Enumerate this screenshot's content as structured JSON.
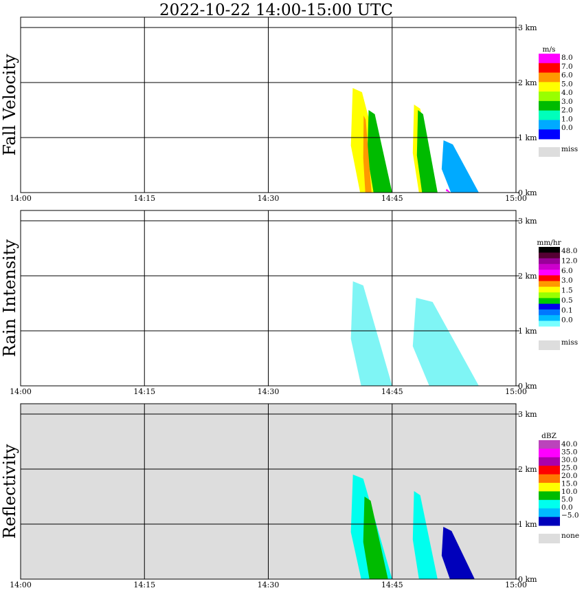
{
  "title": "2022-10-22   14:00-15:00 UTC",
  "colors": {
    "axis": "#000000",
    "missing_fill": "#dddddd",
    "rain_echo": "#7ff5f5"
  },
  "chart_data": [
    {
      "type": "heatmap",
      "panel_label": "Fall Velocity",
      "x_ticks": [
        "14:00",
        "14:15",
        "14:30",
        "14:45",
        "15:00"
      ],
      "y_ticks": [
        "0 km",
        "1 km",
        "2 km",
        "3 km"
      ],
      "xlim": [
        "14:00",
        "15:00"
      ],
      "ylim_km": [
        0,
        3.0
      ],
      "grid": true,
      "background": "#ffffff",
      "colorbar": {
        "unit": "m/s",
        "labels": [
          "8.0",
          "7.0",
          "6.0",
          "5.0",
          "4.0",
          "3.0",
          "2.0",
          "1.0",
          "0.0"
        ],
        "colors": [
          "#ff00ff",
          "#ff0000",
          "#ff9900",
          "#ffff00",
          "#99ff00",
          "#00bb00",
          "#00ffbb",
          "#00aaff",
          "#0000ff"
        ],
        "missing_label": "miss"
      },
      "echoes": [
        {
          "start_min": 40.0,
          "end_min": 44.5,
          "top_km": 1.9,
          "color": "#ffff00"
        },
        {
          "start_min": 42.0,
          "end_min": 45.0,
          "top_km": 1.5,
          "color": "#00bb00"
        },
        {
          "start_min": 41.5,
          "end_min": 42.5,
          "top_km": 1.4,
          "color": "#ff9900"
        },
        {
          "start_min": 47.5,
          "end_min": 50.5,
          "top_km": 1.6,
          "color": "#ffff00"
        },
        {
          "start_min": 48.0,
          "end_min": 50.5,
          "top_km": 1.5,
          "color": "#00bb00"
        },
        {
          "start_min": 51.0,
          "end_min": 55.5,
          "top_km": 0.95,
          "color": "#00aaff"
        },
        {
          "start_min": 51.5,
          "end_min": 53.5,
          "top_km": 0.07,
          "color": "#ff00ff"
        }
      ]
    },
    {
      "type": "heatmap",
      "panel_label": "Rain Intensity",
      "x_ticks": [
        "14:00",
        "14:15",
        "14:30",
        "14:45",
        "15:00"
      ],
      "y_ticks": [
        "0 km",
        "1 km",
        "2 km",
        "3 km"
      ],
      "xlim": [
        "14:00",
        "15:00"
      ],
      "ylim_km": [
        0,
        3.0
      ],
      "grid": true,
      "background": "#ffffff",
      "colorbar": {
        "unit": "mm/hr",
        "labels": [
          "48.0",
          "12.0",
          "6.0",
          "3.0",
          "1.5",
          "0.5",
          "0.1",
          "0.0"
        ],
        "colors": [
          "#000000",
          "#550033",
          "#990099",
          "#cc00cc",
          "#ff00ff",
          "#ff0000",
          "#ff9900",
          "#ffff00",
          "#99ff00",
          "#00cc00",
          "#0000ee",
          "#0077ff",
          "#00bbff",
          "#77ffff",
          "#ffffff"
        ],
        "missing_label": "miss"
      },
      "echoes": [
        {
          "start_min": 40.0,
          "end_min": 45.0,
          "top_km": 1.9,
          "color": "#7ff5f5"
        },
        {
          "start_min": 47.5,
          "end_min": 55.5,
          "top_km": 1.6,
          "color": "#7ff5f5"
        }
      ]
    },
    {
      "type": "heatmap",
      "panel_label": "Reflectivity",
      "x_ticks": [
        "14:00",
        "14:15",
        "14:30",
        "14:45",
        "15:00"
      ],
      "y_ticks": [
        "0 km",
        "1 km",
        "2 km",
        "3 km"
      ],
      "xlim": [
        "14:00",
        "15:00"
      ],
      "ylim_km": [
        0,
        3.0
      ],
      "grid": true,
      "background": "#dddddd",
      "colorbar": {
        "unit": "dBZ",
        "labels": [
          "40.0",
          "35.0",
          "30.0",
          "25.0",
          "20.0",
          "15.0",
          "10.0",
          "5.0",
          "0.0",
          "−5.0"
        ],
        "colors": [
          "#bb44bb",
          "#ff00ff",
          "#aa00aa",
          "#ff0000",
          "#ff7700",
          "#ffff00",
          "#00bb00",
          "#00ffee",
          "#00bbff",
          "#0000bb"
        ],
        "missing_label": "none"
      },
      "echoes": [
        {
          "start_min": 40.0,
          "end_min": 45.0,
          "top_km": 1.9,
          "color": "#00ffee"
        },
        {
          "start_min": 41.5,
          "end_min": 44.5,
          "top_km": 1.5,
          "color": "#00bb00"
        },
        {
          "start_min": 47.5,
          "end_min": 50.5,
          "top_km": 1.6,
          "color": "#00ffee"
        },
        {
          "start_min": 51.0,
          "end_min": 55.0,
          "top_km": 0.95,
          "color": "#0000bb"
        }
      ]
    }
  ]
}
